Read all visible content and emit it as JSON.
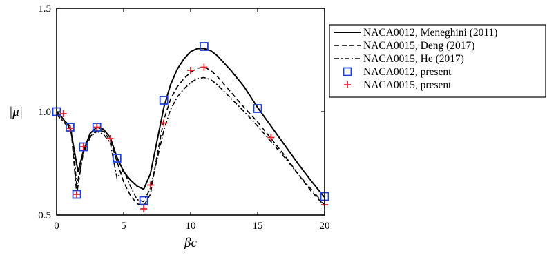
{
  "chart_data": {
    "type": "line",
    "title": "",
    "xlabel": "βc",
    "ylabel": "|μ|",
    "xlim": [
      0,
      20
    ],
    "ylim": [
      0.5,
      1.5
    ],
    "grid": false,
    "legend_position": "outside-right",
    "x_ticks": [
      {
        "value": 0,
        "label": "0"
      },
      {
        "value": 5,
        "label": "5"
      },
      {
        "value": 10,
        "label": "10"
      },
      {
        "value": 15,
        "label": "15"
      },
      {
        "value": 20,
        "label": "20"
      }
    ],
    "y_ticks": [
      {
        "value": 0.5,
        "label": "0.5"
      },
      {
        "value": 1.0,
        "label": "1.0"
      },
      {
        "value": 1.5,
        "label": "1.5"
      }
    ],
    "series": [
      {
        "name": "NACA0012, Meneghini (2011)",
        "kind": "line",
        "dash": "solid",
        "color": "#000000",
        "x": [
          0,
          0.3,
          0.6,
          1.0,
          1.3,
          1.6,
          2.0,
          2.5,
          3.0,
          3.5,
          4.0,
          4.5,
          5.0,
          5.5,
          6.0,
          6.5,
          7.0,
          7.5,
          8.0,
          8.5,
          9.0,
          9.5,
          10.0,
          10.5,
          11.0,
          11.5,
          12.0,
          13.0,
          14.0,
          15.0,
          16.0,
          17.0,
          18.0,
          19.0,
          20.0
        ],
        "y": [
          1.0,
          0.98,
          0.955,
          0.93,
          0.82,
          0.71,
          0.81,
          0.895,
          0.925,
          0.915,
          0.875,
          0.78,
          0.71,
          0.67,
          0.64,
          0.625,
          0.7,
          0.86,
          1.02,
          1.13,
          1.205,
          1.255,
          1.29,
          1.305,
          1.305,
          1.295,
          1.27,
          1.2,
          1.12,
          1.02,
          0.93,
          0.84,
          0.75,
          0.665,
          0.585
        ]
      },
      {
        "name": "NACA0015, Deng (2017)",
        "kind": "line",
        "dash": "dashed",
        "color": "#000000",
        "x": [
          0,
          0.4,
          0.8,
          1.1,
          1.3,
          1.5,
          2.0,
          2.5,
          3.0,
          3.5,
          4.0,
          4.5,
          5.0,
          5.5,
          6.0,
          6.5,
          7.0,
          7.5,
          8.0,
          8.5,
          9.0,
          9.5,
          10.0,
          10.5,
          11.0,
          11.5,
          12.0,
          13.0,
          14.0,
          15.0,
          16.0,
          17.0,
          18.0,
          19.0,
          20.0
        ],
        "y": [
          0.99,
          0.97,
          0.94,
          0.9,
          0.75,
          0.6,
          0.81,
          0.88,
          0.91,
          0.905,
          0.86,
          0.76,
          0.66,
          0.595,
          0.555,
          0.545,
          0.6,
          0.79,
          0.96,
          1.06,
          1.12,
          1.16,
          1.19,
          1.21,
          1.215,
          1.2,
          1.17,
          1.095,
          1.02,
          0.95,
          0.87,
          0.79,
          0.7,
          0.615,
          0.545
        ]
      },
      {
        "name": "NACA0015, He (2017)",
        "kind": "line",
        "dash": "dashdot",
        "color": "#000000",
        "x": [
          0,
          0.4,
          0.8,
          1.1,
          1.3,
          1.5,
          2.0,
          2.5,
          3.0,
          3.5,
          4.0,
          4.5,
          5.0,
          5.5,
          6.0,
          6.5,
          7.0,
          7.5,
          8.0,
          8.5,
          9.0,
          9.5,
          10.0,
          10.5,
          11.0,
          11.5,
          12.0,
          13.0,
          14.0,
          15.0,
          16.0,
          17.0,
          18.0,
          19.0,
          20.0
        ],
        "y": [
          0.985,
          0.96,
          0.93,
          0.9,
          0.8,
          0.64,
          0.8,
          0.875,
          0.905,
          0.89,
          0.85,
          0.68,
          0.72,
          0.64,
          0.575,
          0.565,
          0.63,
          0.77,
          0.91,
          1.01,
          1.07,
          1.11,
          1.14,
          1.16,
          1.165,
          1.155,
          1.13,
          1.065,
          1.0,
          0.93,
          0.855,
          0.78,
          0.7,
          0.625,
          0.55
        ]
      },
      {
        "name": "NACA0012, present",
        "kind": "marker",
        "marker": "square",
        "color": "#1f3fd6",
        "x": [
          0,
          1,
          1.5,
          2,
          3,
          4.5,
          6.5,
          8,
          11,
          15,
          20
        ],
        "y": [
          1.0,
          0.925,
          0.6,
          0.83,
          0.925,
          0.775,
          0.57,
          1.055,
          1.315,
          1.015,
          0.59
        ]
      },
      {
        "name": "NACA0015, present",
        "kind": "marker",
        "marker": "plus",
        "color": "#e8202a",
        "x": [
          0.5,
          1,
          1.5,
          2,
          3,
          4,
          6.5,
          7,
          8,
          10,
          11,
          16,
          20
        ],
        "y": [
          0.99,
          0.92,
          0.6,
          0.83,
          0.925,
          0.87,
          0.53,
          0.645,
          0.945,
          1.2,
          1.215,
          0.875,
          0.55
        ]
      }
    ]
  }
}
